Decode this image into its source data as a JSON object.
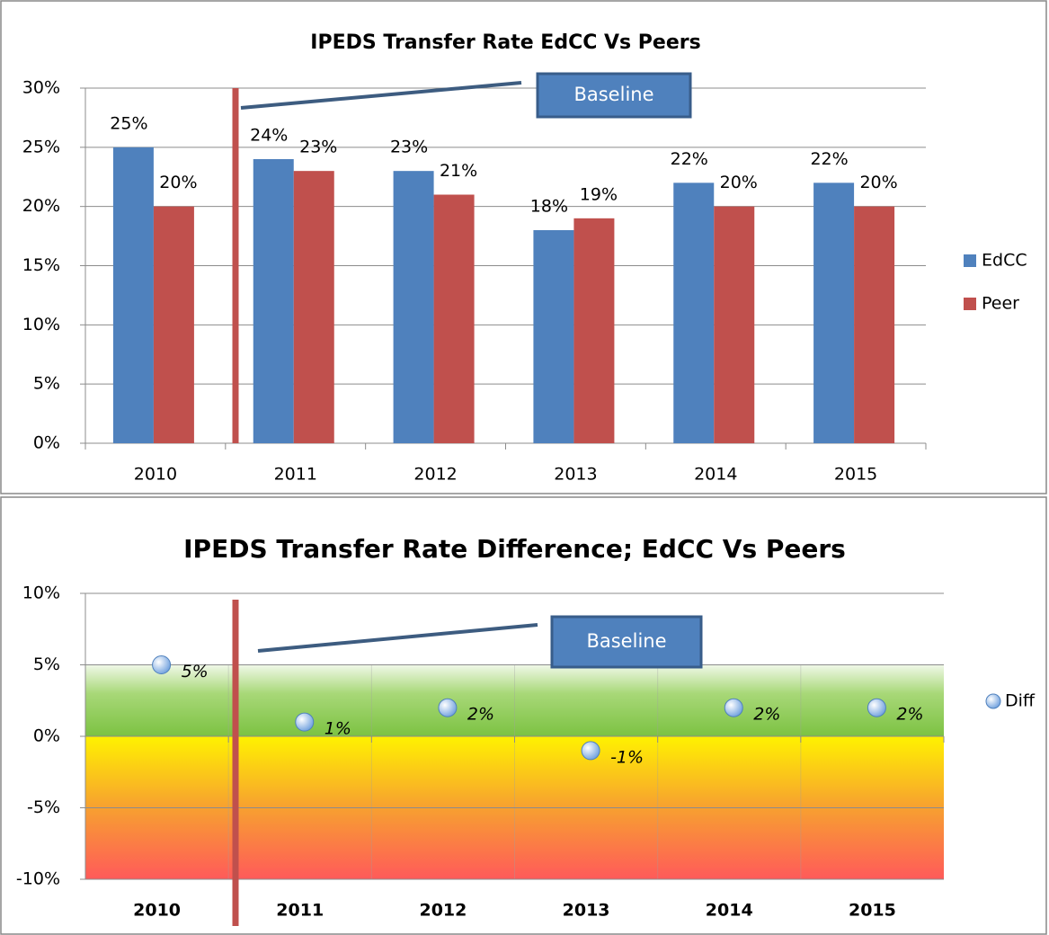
{
  "chart_data": [
    {
      "type": "bar",
      "title": "IPEDS Transfer Rate EdCC Vs Peers",
      "categories": [
        "2010",
        "2011",
        "2012",
        "2013",
        "2014",
        "2015"
      ],
      "series": [
        {
          "name": "EdCC",
          "color": "#4f81bd",
          "values": [
            25,
            24,
            23,
            18,
            22,
            22
          ],
          "value_labels": [
            "25%",
            "24%",
            "23%",
            "18%",
            "22%",
            "22%"
          ]
        },
        {
          "name": "Peer",
          "color": "#c0504d",
          "values": [
            20,
            23,
            21,
            19,
            20,
            20
          ],
          "value_labels": [
            "20%",
            "23%",
            "21%",
            "19%",
            "20%",
            "20%"
          ]
        }
      ],
      "ylim": [
        0,
        30
      ],
      "yticks": [
        {
          "value": 0,
          "label": "0%"
        },
        {
          "value": 5,
          "label": "5%"
        },
        {
          "value": 10,
          "label": "10%"
        },
        {
          "value": 15,
          "label": "15%"
        },
        {
          "value": 20,
          "label": "20%"
        },
        {
          "value": 25,
          "label": "25%"
        },
        {
          "value": 30,
          "label": "30%"
        }
      ],
      "grid": true,
      "legend": "right",
      "annotation": "Baseline"
    },
    {
      "type": "dot",
      "title": "IPEDS Transfer Rate Difference; EdCC Vs Peers",
      "categories": [
        "2010",
        "2011",
        "2012",
        "2013",
        "2014",
        "2015"
      ],
      "series": [
        {
          "name": "Diff",
          "color": "#8db3e2",
          "values": [
            5,
            1,
            2,
            -1,
            2,
            2
          ],
          "value_labels": [
            "5%",
            "1%",
            "2%",
            "-1%",
            "2%",
            "2%"
          ]
        }
      ],
      "ylim": [
        -10,
        10
      ],
      "yticks": [
        {
          "value": -10,
          "label": "-10%"
        },
        {
          "value": -5,
          "label": "-5%"
        },
        {
          "value": 0,
          "label": "0%"
        },
        {
          "value": 5,
          "label": "5%"
        },
        {
          "value": 10,
          "label": "10%"
        }
      ],
      "grid": true,
      "legend": "right",
      "annotation": "Baseline"
    }
  ]
}
